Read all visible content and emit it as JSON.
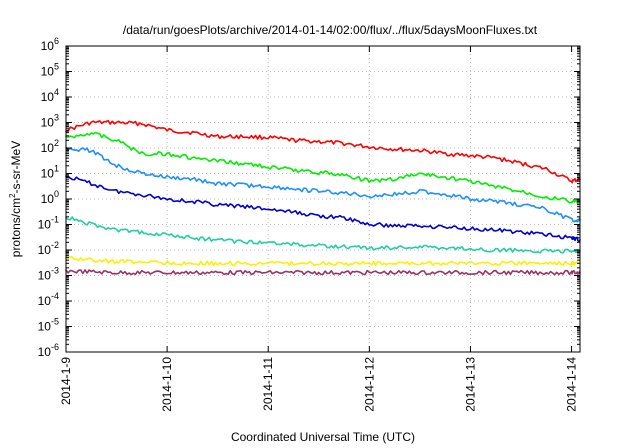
{
  "chart_data": {
    "type": "line",
    "title": "/data/run/goesPlots/archive/2014-01-14/02:00/flux/../flux/5daysMoonFluxes.txt",
    "xlabel": "Coordinated Universal Time (UTC)",
    "ylabel": "protons/cm2-s-sr-MeV",
    "ylabel_parts": {
      "base": "protons/cm",
      "sup": "2",
      "rest": "-s-sr-MeV"
    },
    "xscale": "time",
    "yscale": "log",
    "xlim": [
      "2014-01-09T00:00",
      "2014-01-14T02:00"
    ],
    "ylim": [
      1e-06,
      1000000.0
    ],
    "grid": true,
    "legend": "none",
    "x_ticks": [
      "2014-1-9",
      "2014-1-10",
      "2014-1-11",
      "2014-1-12",
      "2014-1-13",
      "2014-1-14"
    ],
    "x_tick_dates": [
      "2014-01-09T00:00",
      "2014-01-10T00:00",
      "2014-01-11T00:00",
      "2014-01-12T00:00",
      "2014-01-13T00:00",
      "2014-01-14T00:00"
    ],
    "y_ticks": [
      {
        "base": "10",
        "exp": "-6",
        "value": 1e-06
      },
      {
        "base": "10",
        "exp": "-5",
        "value": 1e-05
      },
      {
        "base": "10",
        "exp": "-4",
        "value": 0.0001
      },
      {
        "base": "10",
        "exp": "-3",
        "value": 0.001
      },
      {
        "base": "10",
        "exp": "-2",
        "value": 0.01
      },
      {
        "base": "10",
        "exp": "-1",
        "value": 0.1
      },
      {
        "base": "10",
        "exp": "0",
        "value": 1
      },
      {
        "base": "10",
        "exp": "1",
        "value": 10
      },
      {
        "base": "10",
        "exp": "2",
        "value": 100
      },
      {
        "base": "10",
        "exp": "3",
        "value": 1000
      },
      {
        "base": "10",
        "exp": "4",
        "value": 10000
      },
      {
        "base": "10",
        "exp": "5",
        "value": 100000
      },
      {
        "base": "10",
        "exp": "6",
        "value": 1000000
      }
    ],
    "x": [
      "2014-01-09T00:00",
      "2014-01-09T06:00",
      "2014-01-09T12:00",
      "2014-01-09T18:00",
      "2014-01-10T00:00",
      "2014-01-10T06:00",
      "2014-01-10T12:00",
      "2014-01-10T18:00",
      "2014-01-11T00:00",
      "2014-01-11T06:00",
      "2014-01-11T12:00",
      "2014-01-11T18:00",
      "2014-01-12T00:00",
      "2014-01-12T06:00",
      "2014-01-12T12:00",
      "2014-01-12T18:00",
      "2014-01-13T00:00",
      "2014-01-13T06:00",
      "2014-01-13T12:00",
      "2014-01-13T18:00",
      "2014-01-14T00:00",
      "2014-01-14T02:00"
    ],
    "series": [
      {
        "color": "#ff0000",
        "values": [
          500,
          1000,
          1000,
          900,
          500,
          400,
          280,
          280,
          260,
          200,
          180,
          150,
          110,
          90,
          80,
          60,
          50,
          40,
          25,
          15,
          5,
          6
        ]
      },
      {
        "color": "#00ee00",
        "values": [
          250,
          400,
          200,
          60,
          60,
          40,
          30,
          25,
          18,
          14,
          11,
          9,
          5,
          6,
          10,
          7,
          5,
          3,
          2,
          1.2,
          0.8,
          0.8
        ]
      },
      {
        "color": "#1e90ff",
        "values": [
          100,
          80,
          20,
          10,
          7,
          6,
          4,
          3.5,
          3,
          2.5,
          2,
          1.7,
          1.3,
          1.5,
          2,
          1.5,
          1,
          0.8,
          0.6,
          0.4,
          0.15,
          0.15
        ]
      },
      {
        "color": "#0000cc",
        "values": [
          8,
          4,
          2,
          1.5,
          1,
          0.8,
          0.6,
          0.5,
          0.4,
          0.3,
          0.22,
          0.18,
          0.1,
          0.09,
          0.09,
          0.08,
          0.07,
          0.06,
          0.05,
          0.04,
          0.03,
          0.025
        ]
      },
      {
        "color": "#20d0a0",
        "values": [
          0.2,
          0.1,
          0.06,
          0.05,
          0.04,
          0.03,
          0.025,
          0.02,
          0.02,
          0.017,
          0.015,
          0.013,
          0.012,
          0.012,
          0.013,
          0.012,
          0.011,
          0.01,
          0.01,
          0.009,
          0.009,
          0.009
        ]
      },
      {
        "color": "#ffee00",
        "values": [
          0.005,
          0.004,
          0.0035,
          0.0034,
          0.0032,
          0.003,
          0.003,
          0.003,
          0.003,
          0.003,
          0.003,
          0.003,
          0.003,
          0.003,
          0.003,
          0.003,
          0.003,
          0.003,
          0.003,
          0.003,
          0.003,
          0.003
        ]
      },
      {
        "color": "#993366",
        "values": [
          0.0015,
          0.0014,
          0.0013,
          0.0013,
          0.0013,
          0.0013,
          0.0013,
          0.0013,
          0.0013,
          0.0013,
          0.0013,
          0.0013,
          0.0013,
          0.0013,
          0.0013,
          0.0013,
          0.0013,
          0.0013,
          0.0013,
          0.0013,
          0.0013,
          0.0013
        ]
      }
    ]
  }
}
